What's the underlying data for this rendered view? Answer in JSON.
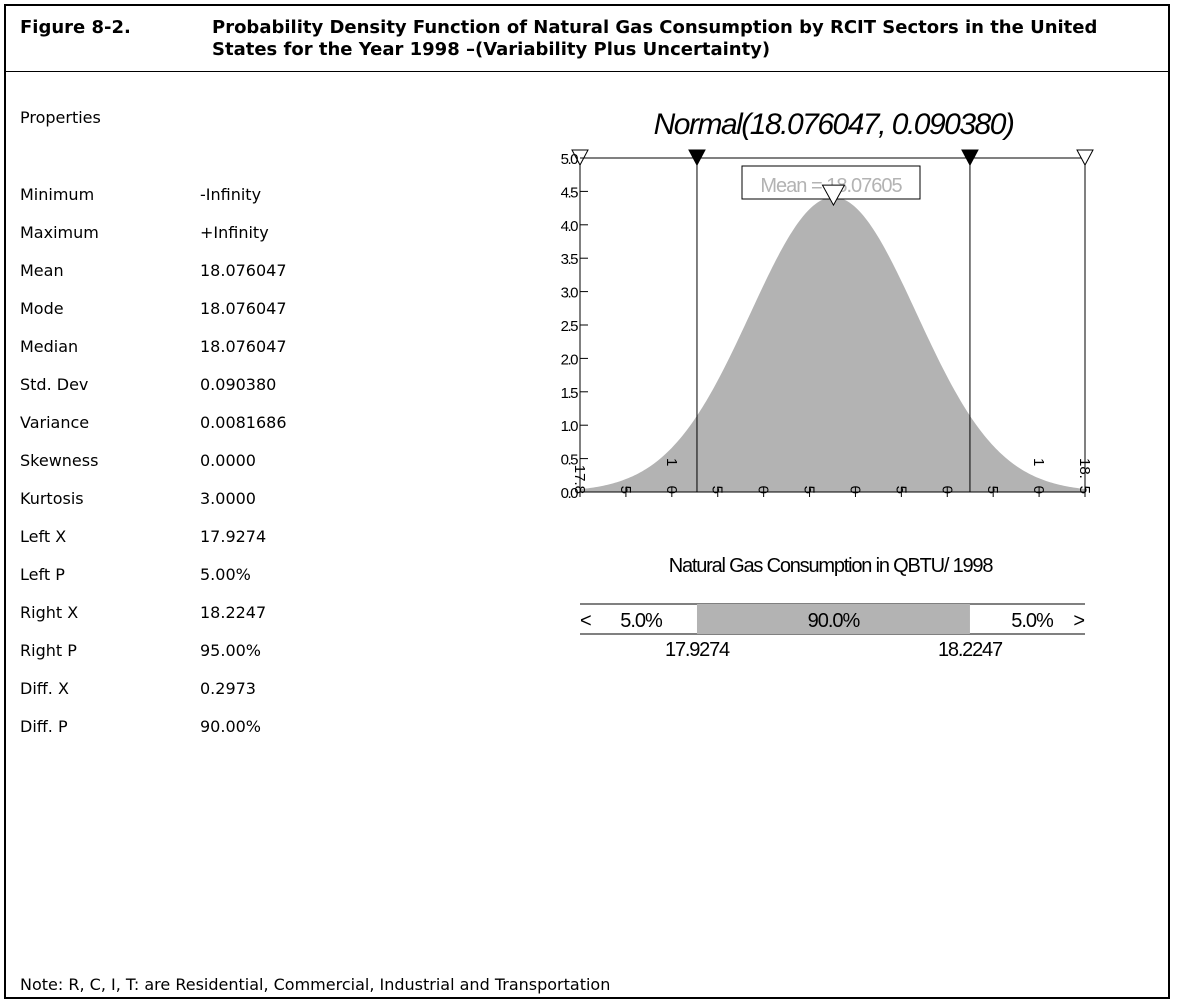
{
  "figure": {
    "label": "Figure 8-2.",
    "title": "Probability Density Function of Natural Gas Consumption by RCIT Sectors in the United States for the Year 1998 –(Variability Plus Uncertainty)"
  },
  "properties": {
    "heading": "Properties",
    "rows": [
      {
        "name": "Minimum",
        "value": "-Infinity"
      },
      {
        "name": "Maximum",
        "value": "+Infinity"
      },
      {
        "name": "Mean",
        "value": "18.076047"
      },
      {
        "name": "Mode",
        "value": "18.076047"
      },
      {
        "name": "Median",
        "value": "18.076047"
      },
      {
        "name": "Std. Dev",
        "value": "0.090380"
      },
      {
        "name": "Variance",
        "value": "0.0081686"
      },
      {
        "name": "Skewness",
        "value": "0.0000"
      },
      {
        "name": "Kurtosis",
        "value": "3.0000"
      },
      {
        "name": "Left X",
        "value": "17.9274"
      },
      {
        "name": "Left P",
        "value": "5.00%"
      },
      {
        "name": "Right X",
        "value": "18.2247"
      },
      {
        "name": "Right P",
        "value": "95.00%"
      },
      {
        "name": "Diff. X",
        "value": "0.2973"
      },
      {
        "name": "Diff. P",
        "value": "90.00%"
      }
    ]
  },
  "note": "Note: R, C, I, T: are Residential, Commercial, Industrial and Transportation",
  "chart_data": {
    "type": "area",
    "distribution": "normal",
    "title": "Normal(18.076047, 0.090380)",
    "xlabel": "Natural Gas Consumption in QBTU/ 1998",
    "ylabel": "",
    "mean": 18.076047,
    "std_dev": 0.09038,
    "xlim": [
      17.8,
      18.35
    ],
    "ylim": [
      0,
      5.0
    ],
    "y_ticks": [
      "5.0",
      "4.5",
      "4.0",
      "3.5",
      "3.0",
      "2.5",
      "2.0",
      "1.5",
      "1.0",
      "0.5",
      "0.0"
    ],
    "x_tick_labels": [
      {
        "x": 17.8,
        "label": "17.8"
      },
      {
        "x": 17.85,
        "label": "5"
      },
      {
        "x": 17.9,
        "label": "0"
      },
      {
        "x": 17.95,
        "label": "5"
      },
      {
        "x": 18.0,
        "label": "0"
      },
      {
        "x": 18.05,
        "label": "5"
      },
      {
        "x": 18.1,
        "label": "0"
      },
      {
        "x": 18.15,
        "label": "5"
      },
      {
        "x": 18.2,
        "label": "0"
      },
      {
        "x": 18.25,
        "label": "5"
      },
      {
        "x": 18.3,
        "label": "0"
      },
      {
        "x": 18.35,
        "label": "5"
      }
    ],
    "x_tick_partials": [
      {
        "x": 17.9,
        "label": "1"
      },
      {
        "x": 18.3,
        "label": "1"
      },
      {
        "x": 18.35,
        "label": "18."
      }
    ],
    "mean_marker_label": "Mean = 18.07605",
    "left_x": 17.9274,
    "right_x": 18.2247,
    "probability_bar": {
      "left_pct": "5.0%",
      "middle_pct": "90.0%",
      "right_pct": "5.0%",
      "left_arrow": "<",
      "right_arrow": ">",
      "left_value": "17.9274",
      "right_value": "18.2247"
    },
    "colors": {
      "fill": "#b3b3b3",
      "mean_label": "#b3b3b3",
      "line": "#000000"
    },
    "grid": false
  }
}
